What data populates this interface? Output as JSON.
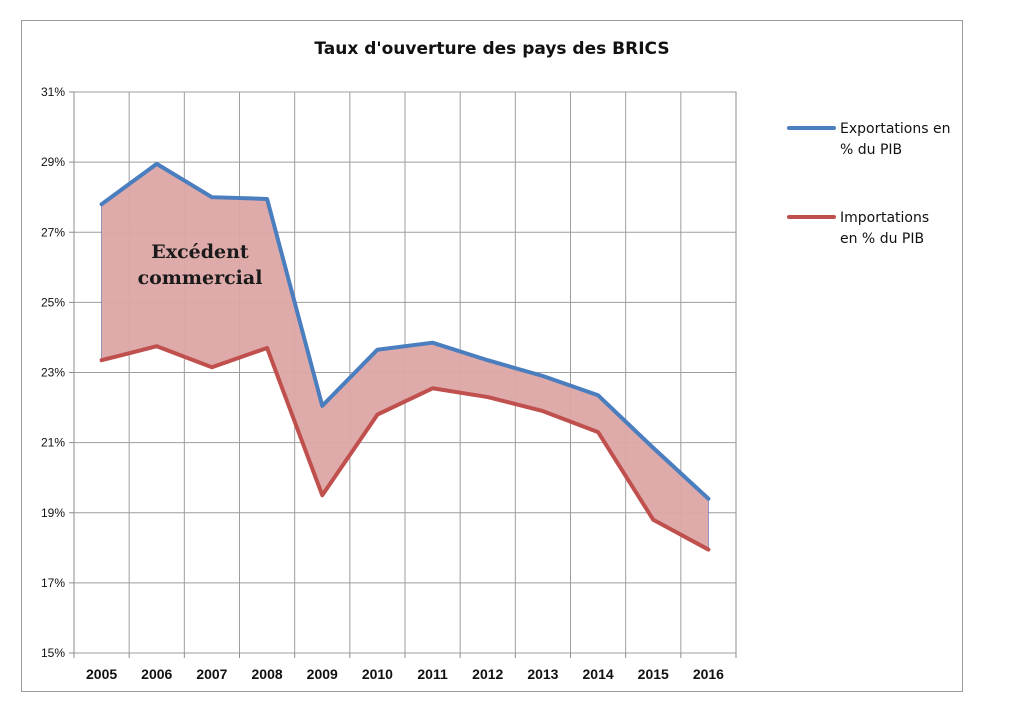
{
  "chart_data": {
    "type": "line",
    "title": "Taux d'ouverture des pays des BRICS",
    "xlabel": "",
    "ylabel": "",
    "categories": [
      "2005",
      "2006",
      "2007",
      "2008",
      "2009",
      "2010",
      "2011",
      "2012",
      "2013",
      "2014",
      "2015",
      "2016"
    ],
    "ylim": [
      15,
      31
    ],
    "yticks": [
      15,
      17,
      19,
      21,
      23,
      25,
      27,
      29,
      31
    ],
    "ytick_labels": [
      "15%",
      "17%",
      "19%",
      "21%",
      "23%",
      "25%",
      "27%",
      "29%",
      "31%"
    ],
    "grid": true,
    "legend_position": "right",
    "series": [
      {
        "name": "Exportations en % du PIB",
        "legend_lines": [
          "Exportations en",
          "% du PIB"
        ],
        "color": "#4a7ebf",
        "values": [
          27.8,
          28.95,
          28.0,
          27.95,
          22.05,
          23.65,
          23.85,
          23.35,
          22.9,
          22.35,
          20.85,
          19.4
        ]
      },
      {
        "name": "Importations en % du PIB",
        "legend_lines": [
          "Importations",
          "en % du PIB"
        ],
        "color": "#c0504d",
        "values": [
          23.35,
          23.75,
          23.15,
          23.7,
          19.5,
          21.8,
          22.55,
          22.3,
          21.9,
          21.3,
          18.8,
          17.95
        ]
      }
    ],
    "fill_between_color": "#dca6a5",
    "annotation": {
      "lines": [
        "Excédent",
        "commercial"
      ]
    }
  }
}
